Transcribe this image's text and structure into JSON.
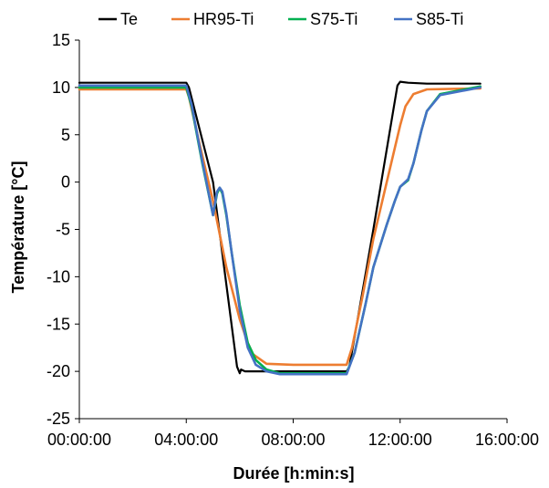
{
  "chart_data": {
    "type": "line",
    "xlabel": "Durée [h:min:s]",
    "ylabel": "Température [°C]",
    "xlim": [
      0,
      16
    ],
    "ylim": [
      -25,
      15
    ],
    "x_ticks": [
      {
        "value": 0,
        "label": "00:00:00"
      },
      {
        "value": 4,
        "label": "04:00:00"
      },
      {
        "value": 8,
        "label": "08:00:00"
      },
      {
        "value": 12,
        "label": "12:00:00"
      },
      {
        "value": 16,
        "label": "16:00:00"
      }
    ],
    "y_ticks": [
      15,
      10,
      5,
      0,
      -5,
      -10,
      -15,
      -20,
      -25
    ],
    "grid": false,
    "legend_position": "top",
    "series": [
      {
        "name": "Te",
        "color": "#000000",
        "x": [
          0,
          4.0,
          4.1,
          5.0,
          5.9,
          6.0,
          6.05,
          6.2,
          6.5,
          8.0,
          10.0,
          10.1,
          11.0,
          11.9,
          12.0,
          12.3,
          13.0,
          15.0
        ],
        "y": [
          10.5,
          10.5,
          10.0,
          0.0,
          -19.5,
          -20.2,
          -19.8,
          -20.0,
          -20.0,
          -20.0,
          -20.0,
          -19.5,
          -5.0,
          10.2,
          10.6,
          10.5,
          10.4,
          10.4
        ]
      },
      {
        "name": "HR95-Ti",
        "color": "#ED7D31",
        "x": [
          0,
          4.0,
          4.1,
          4.5,
          5.0,
          5.5,
          6.0,
          6.3,
          6.5,
          7.0,
          8.0,
          10.0,
          10.2,
          10.6,
          11.0,
          11.5,
          12.0,
          12.2,
          12.5,
          13.0,
          15.0
        ],
        "y": [
          9.8,
          9.8,
          9.0,
          4.0,
          -2.0,
          -9.0,
          -14.5,
          -17.0,
          -18.2,
          -19.2,
          -19.3,
          -19.3,
          -17.5,
          -12.0,
          -6.0,
          0.0,
          6.0,
          8.0,
          9.3,
          9.8,
          9.9
        ]
      },
      {
        "name": "S75-Ti",
        "color": "#00B050",
        "x": [
          0,
          4.0,
          4.2,
          4.6,
          5.0,
          5.15,
          5.25,
          5.35,
          5.5,
          5.7,
          6.0,
          6.3,
          6.6,
          7.0,
          7.5,
          8.0,
          10.0,
          10.3,
          10.7,
          11.0,
          11.5,
          11.8,
          12.0,
          12.3,
          12.5,
          12.8,
          13.0,
          13.5,
          15.0
        ],
        "y": [
          10.0,
          10.0,
          8.0,
          2.0,
          -3.5,
          -1.2,
          -0.6,
          -1.2,
          -3.5,
          -7.5,
          -13.0,
          -17.0,
          -18.8,
          -19.8,
          -20.2,
          -20.2,
          -20.2,
          -18.0,
          -13.0,
          -9.0,
          -4.5,
          -2.0,
          -0.5,
          0.2,
          2.0,
          5.5,
          7.5,
          9.3,
          10.1
        ]
      },
      {
        "name": "S85-Ti",
        "color": "#4472C4",
        "x": [
          0,
          4.0,
          4.2,
          4.6,
          5.0,
          5.15,
          5.25,
          5.35,
          5.5,
          5.7,
          6.0,
          6.3,
          6.6,
          7.0,
          7.5,
          8.0,
          10.0,
          10.3,
          10.7,
          11.0,
          11.5,
          11.8,
          12.0,
          12.3,
          12.5,
          12.8,
          13.0,
          13.5,
          15.0
        ],
        "y": [
          10.2,
          10.2,
          8.2,
          2.2,
          -3.5,
          -1.0,
          -0.6,
          -1.0,
          -3.3,
          -7.5,
          -13.5,
          -17.5,
          -19.3,
          -20.0,
          -20.3,
          -20.3,
          -20.3,
          -18.0,
          -13.0,
          -9.0,
          -4.5,
          -2.0,
          -0.5,
          0.3,
          2.0,
          5.5,
          7.5,
          9.2,
          10.0
        ]
      }
    ]
  }
}
